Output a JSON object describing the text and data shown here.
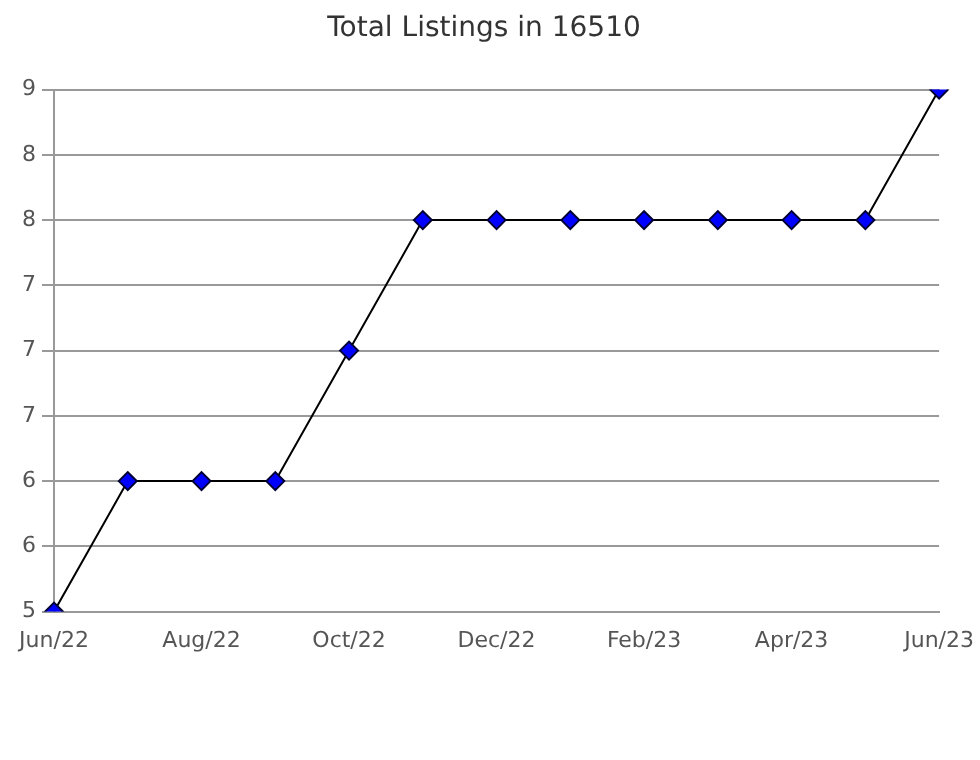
{
  "chart_data": {
    "type": "line",
    "title": "Total Listings in 16510",
    "categories": [
      "Jun/22",
      null,
      "Aug/22",
      null,
      "Oct/22",
      null,
      "Dec/22",
      null,
      "Feb/23",
      null,
      "Apr/23",
      null,
      "Jun/23"
    ],
    "series": [
      {
        "color": "#0000ff",
        "values": [
          5,
          6,
          6,
          6,
          7,
          8,
          8,
          8,
          8,
          8,
          8,
          8,
          9
        ]
      }
    ],
    "ylim": [
      5,
      9
    ],
    "yticks": [
      {
        "value": 5,
        "label": "5"
      },
      {
        "value": 5.5,
        "label": "6"
      },
      {
        "value": 6,
        "label": "6"
      },
      {
        "value": 6.5,
        "label": "7"
      },
      {
        "value": 7,
        "label": "7"
      },
      {
        "value": 7.5,
        "label": "7"
      },
      {
        "value": 8,
        "label": "8"
      },
      {
        "value": 8.5,
        "label": "8"
      },
      {
        "value": 9,
        "label": "9"
      }
    ],
    "grid": "y",
    "legend": false,
    "marker": "diamond",
    "line_style": "solid"
  }
}
